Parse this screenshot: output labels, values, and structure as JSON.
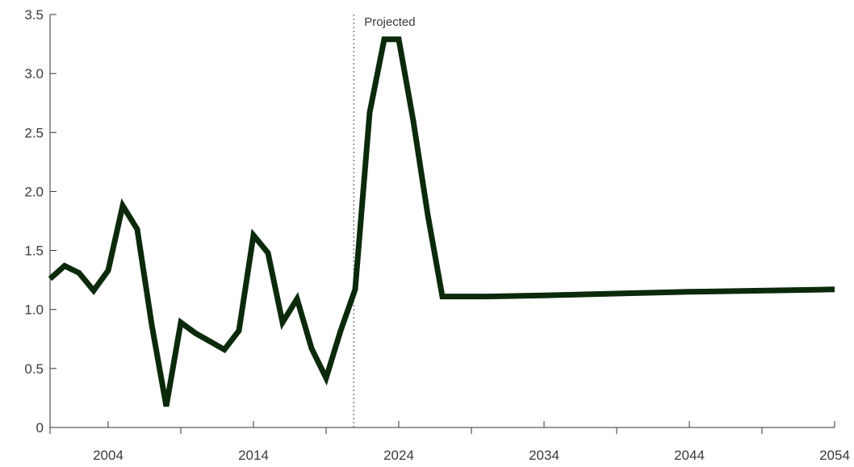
{
  "chart_data": {
    "type": "line",
    "title": "",
    "xlabel": "",
    "ylabel": "",
    "xlim": [
      2000,
      2054
    ],
    "ylim": [
      0,
      3.5
    ],
    "grid": false,
    "line_color": "#0b2a0b",
    "y_ticks": [
      {
        "value": 0,
        "label": "0"
      },
      {
        "value": 0.5,
        "label": "0.5"
      },
      {
        "value": 1.0,
        "label": "1.0"
      },
      {
        "value": 1.5,
        "label": "1.5"
      },
      {
        "value": 2.0,
        "label": "2.0"
      },
      {
        "value": 2.5,
        "label": "2.5"
      },
      {
        "value": 3.0,
        "label": "3.0"
      },
      {
        "value": 3.5,
        "label": "3.5"
      }
    ],
    "x_ticks": [
      {
        "value": 2004,
        "label": "2004"
      },
      {
        "value": 2014,
        "label": "2014"
      },
      {
        "value": 2024,
        "label": "2024"
      },
      {
        "value": 2034,
        "label": "2034"
      },
      {
        "value": 2044,
        "label": "2044"
      },
      {
        "value": 2054,
        "label": "2054"
      }
    ],
    "x_minor_ticks": [
      2000,
      2009,
      2019,
      2029,
      2039,
      2049
    ],
    "projection_start": 2020.9,
    "annotation": "Projected",
    "series": [
      {
        "x": [
          2000,
          2001,
          2002,
          2003,
          2004,
          2005,
          2006,
          2007,
          2008,
          2009,
          2010,
          2011,
          2012,
          2013,
          2014,
          2015,
          2016,
          2017,
          2018,
          2019,
          2020,
          2021,
          2022,
          2023,
          2024,
          2025,
          2026,
          2027,
          2028,
          2029,
          2030,
          2034,
          2044,
          2054
        ],
        "values": [
          1.26,
          1.37,
          1.31,
          1.16,
          1.33,
          1.88,
          1.68,
          0.87,
          0.18,
          0.89,
          0.8,
          0.73,
          0.66,
          0.82,
          1.63,
          1.48,
          0.89,
          1.09,
          0.67,
          0.42,
          0.82,
          1.17,
          2.67,
          3.29,
          3.29,
          2.6,
          1.8,
          1.11,
          1.11,
          1.11,
          1.11,
          1.12,
          1.15,
          1.17
        ]
      }
    ]
  }
}
